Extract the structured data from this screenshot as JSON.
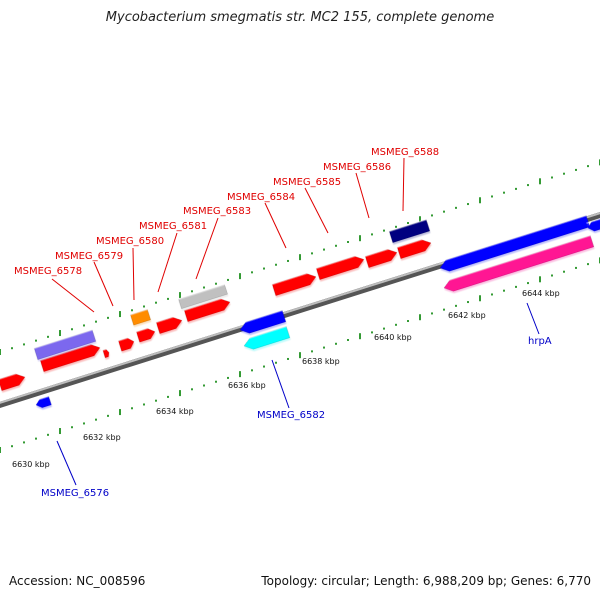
{
  "title": "Mycobacterium smegmatis str. MC2 155, complete genome",
  "footer": {
    "accession": "Accession: NC_008596",
    "summary": "Topology: circular; Length: 6,988,209 bp; Genes: 6,770"
  },
  "colors": {
    "forward_gene": "#ff0000",
    "reverse_gene": "#0000ff",
    "rna": "#ff8c00",
    "pseudo": "#c0c0c0",
    "navy": "#000080",
    "cyan": "#00ffff",
    "magenta": "#ff1493",
    "purple": "#7b68ee",
    "tick": "#008000",
    "backbone": "#8c8c8c"
  },
  "scale_labels": [
    "6630 kbp",
    "6632 kbp",
    "6634 kbp",
    "6636 kbp",
    "6638 kbp",
    "6640 kbp",
    "6642 kbp",
    "6644 kbp"
  ],
  "gene_labels_top": [
    "MSMEG_6578",
    "MSMEG_6579",
    "MSMEG_6580",
    "MSMEG_6581",
    "MSMEG_6583",
    "MSMEG_6584",
    "MSMEG_6585",
    "MSMEG_6586",
    "MSMEG_6588"
  ],
  "gene_labels_bottom": [
    "MSMEG_6576",
    "MSMEG_6582",
    "hrpA"
  ]
}
